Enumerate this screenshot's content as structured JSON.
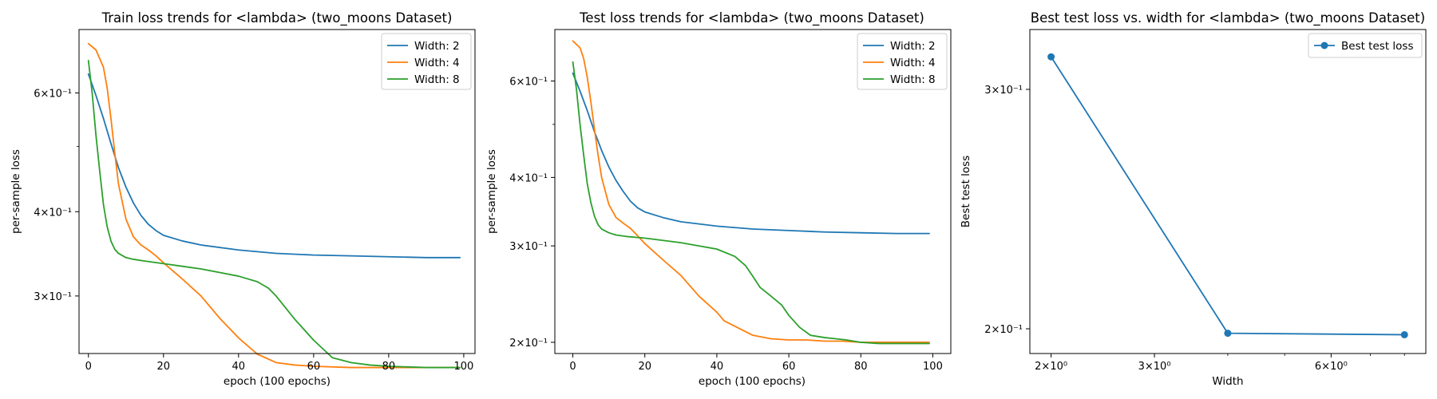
{
  "chart_data": [
    {
      "type": "line",
      "title": "Train loss trends for <lambda> (two_moons Dataset)",
      "xlabel": "epoch (100 epochs)",
      "ylabel": "per-sample loss",
      "xlim": [
        -2.5,
        103
      ],
      "ylim": [
        0.2465,
        0.745
      ],
      "xscale": "linear",
      "yscale": "log",
      "grid": false,
      "legend_position": "top-right",
      "xticks": [
        0,
        20,
        40,
        60,
        80,
        100
      ],
      "xtick_labels": [
        "0",
        "20",
        "40",
        "60",
        "80",
        "100"
      ],
      "yticks": [
        0.3,
        0.4,
        0.6
      ],
      "ytick_labels": [
        "3×10⁻¹",
        "4×10⁻¹",
        "6×10⁻¹"
      ],
      "yminor": [
        0.5
      ],
      "series": [
        {
          "name": "Width: 2",
          "color": "#1f77b4",
          "x": [
            0,
            2,
            4,
            6,
            8,
            10,
            12,
            14,
            16,
            18,
            20,
            25,
            30,
            40,
            50,
            60,
            70,
            80,
            90,
            99
          ],
          "y": [
            0.64,
            0.595,
            0.55,
            0.505,
            0.465,
            0.435,
            0.412,
            0.395,
            0.383,
            0.375,
            0.369,
            0.362,
            0.357,
            0.351,
            0.347,
            0.345,
            0.344,
            0.343,
            0.342,
            0.342
          ]
        },
        {
          "name": "Width: 4",
          "color": "#ff7f0e",
          "x": [
            0,
            2,
            4,
            5,
            6,
            7,
            8,
            10,
            12,
            14,
            16,
            18,
            20,
            25,
            30,
            35,
            40,
            45,
            50,
            55,
            60,
            70,
            80,
            90,
            99
          ],
          "y": [
            0.71,
            0.695,
            0.655,
            0.61,
            0.55,
            0.49,
            0.44,
            0.39,
            0.367,
            0.357,
            0.351,
            0.344,
            0.336,
            0.318,
            0.3,
            0.278,
            0.26,
            0.246,
            0.239,
            0.237,
            0.236,
            0.235,
            0.235,
            0.235,
            0.235
          ]
        },
        {
          "name": "Width: 8",
          "color": "#2ca02c",
          "x": [
            0,
            1,
            2,
            3,
            4,
            5,
            6,
            7,
            8,
            10,
            12,
            15,
            20,
            25,
            30,
            35,
            40,
            45,
            48,
            50,
            55,
            60,
            65,
            70,
            75,
            80,
            90,
            99
          ],
          "y": [
            0.67,
            0.6,
            0.52,
            0.46,
            0.41,
            0.38,
            0.362,
            0.352,
            0.347,
            0.342,
            0.34,
            0.338,
            0.335,
            0.332,
            0.329,
            0.325,
            0.321,
            0.315,
            0.308,
            0.3,
            0.277,
            0.258,
            0.243,
            0.239,
            0.237,
            0.236,
            0.235,
            0.235
          ]
        }
      ]
    },
    {
      "type": "line",
      "title": "Test loss trends for <lambda> (two_moons Dataset)",
      "xlabel": "epoch (100 epochs)",
      "ylabel": "per-sample loss",
      "xlim": [
        -5,
        105
      ],
      "ylim": [
        0.1908,
        0.745
      ],
      "xscale": "linear",
      "yscale": "log",
      "grid": false,
      "legend_position": "top-right",
      "xticks": [
        0,
        20,
        40,
        60,
        80,
        100
      ],
      "xtick_labels": [
        "0",
        "20",
        "40",
        "60",
        "80",
        "100"
      ],
      "yticks": [
        0.2,
        0.3,
        0.4,
        0.6
      ],
      "ytick_labels": [
        "2×10⁻¹",
        "3×10⁻¹",
        "4×10⁻¹",
        "6×10⁻¹"
      ],
      "yminor": [
        0.5
      ],
      "series": [
        {
          "name": "Width: 2",
          "color": "#1f77b4",
          "x": [
            0,
            2,
            4,
            6,
            8,
            10,
            12,
            14,
            16,
            18,
            20,
            25,
            30,
            40,
            50,
            60,
            70,
            80,
            90,
            99
          ],
          "y": [
            0.62,
            0.575,
            0.53,
            0.485,
            0.448,
            0.418,
            0.395,
            0.377,
            0.362,
            0.352,
            0.346,
            0.338,
            0.332,
            0.326,
            0.322,
            0.32,
            0.318,
            0.317,
            0.316,
            0.316
          ]
        },
        {
          "name": "Width: 4",
          "color": "#ff7f0e",
          "x": [
            0,
            2,
            3,
            4,
            5,
            6,
            7,
            8,
            10,
            12,
            14,
            16,
            18,
            20,
            25,
            30,
            35,
            40,
            42,
            45,
            50,
            55,
            60,
            65,
            70,
            75,
            80,
            85,
            90,
            95,
            99
          ],
          "y": [
            0.71,
            0.69,
            0.66,
            0.61,
            0.55,
            0.49,
            0.44,
            0.4,
            0.357,
            0.338,
            0.33,
            0.323,
            0.313,
            0.303,
            0.283,
            0.265,
            0.243,
            0.227,
            0.219,
            0.214,
            0.206,
            0.203,
            0.202,
            0.202,
            0.201,
            0.201,
            0.2,
            0.2,
            0.2,
            0.2,
            0.2
          ]
        },
        {
          "name": "Width: 8",
          "color": "#2ca02c",
          "x": [
            0,
            1,
            2,
            3,
            4,
            5,
            6,
            7,
            8,
            10,
            12,
            15,
            20,
            25,
            30,
            35,
            40,
            45,
            48,
            50,
            52,
            55,
            58,
            60,
            63,
            66,
            70,
            73,
            76,
            80,
            85,
            90,
            95,
            99
          ],
          "y": [
            0.65,
            0.58,
            0.5,
            0.44,
            0.39,
            0.36,
            0.34,
            0.328,
            0.322,
            0.317,
            0.314,
            0.312,
            0.31,
            0.307,
            0.304,
            0.3,
            0.296,
            0.287,
            0.276,
            0.264,
            0.252,
            0.243,
            0.234,
            0.224,
            0.213,
            0.206,
            0.204,
            0.203,
            0.202,
            0.2,
            0.199,
            0.199,
            0.199,
            0.199
          ]
        }
      ]
    },
    {
      "type": "line",
      "title": "Best test loss vs. width for <lambda> (two_moons Dataset)",
      "xlabel": "Width",
      "ylabel": "Best test loss",
      "xlim": [
        1.84,
        8.7
      ],
      "ylim": [
        0.1918,
        0.332
      ],
      "xscale": "log",
      "yscale": "log",
      "grid": false,
      "legend_position": "top-right",
      "xticks": [
        2,
        3,
        6
      ],
      "xtick_labels": [
        "2×10⁰",
        "3×10⁰",
        "6×10⁰"
      ],
      "xminor": [
        4,
        5,
        7,
        8
      ],
      "yticks": [
        0.2,
        0.3
      ],
      "ytick_labels": [
        "2×10⁻¹",
        "3×10⁻¹"
      ],
      "series": [
        {
          "name": "Best test loss",
          "color": "#1f77b4",
          "marker": "circle",
          "x": [
            2,
            4,
            8
          ],
          "y": [
            0.317,
            0.1985,
            0.198
          ]
        }
      ]
    }
  ]
}
